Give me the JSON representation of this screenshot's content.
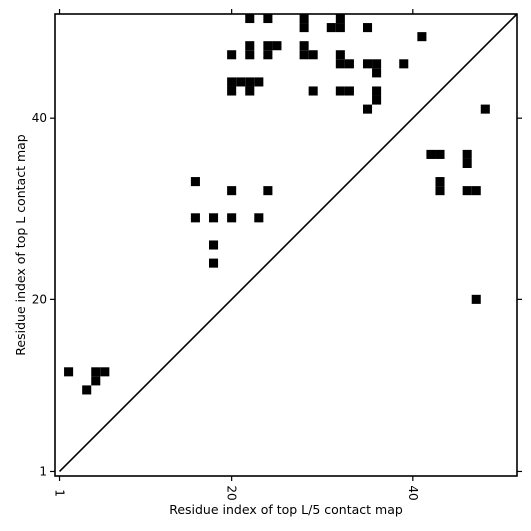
{
  "chart_data": {
    "type": "heatmap",
    "title": "",
    "xlabel": "Residue index of top L/5 contact map",
    "ylabel": "Residue index of top L contact map",
    "xlim": [
      0.5,
      51.5
    ],
    "ylim": [
      0.5,
      51.5
    ],
    "x_ticks": [
      1,
      20,
      40
    ],
    "x_tick_labels": [
      "1",
      "20",
      "40"
    ],
    "y_ticks": [
      1,
      20,
      40
    ],
    "y_tick_labels": [
      "1",
      "20",
      "40"
    ],
    "x_tick_rotation": "vertical",
    "grid": false,
    "diagonal_line": true,
    "cell_color": "#000000",
    "upper_triangle_cells": [
      [
        22,
        51
      ],
      [
        24,
        51
      ],
      [
        28,
        51
      ],
      [
        32,
        51
      ],
      [
        28,
        50
      ],
      [
        31,
        50
      ],
      [
        32,
        50
      ],
      [
        35,
        50
      ],
      [
        41,
        49
      ],
      [
        22,
        48
      ],
      [
        24,
        48
      ],
      [
        25,
        48
      ],
      [
        28,
        48
      ],
      [
        20,
        47
      ],
      [
        22,
        47
      ],
      [
        24,
        47
      ],
      [
        28,
        47
      ],
      [
        29,
        47
      ],
      [
        32,
        47
      ],
      [
        32,
        46
      ],
      [
        33,
        46
      ],
      [
        35,
        46
      ],
      [
        36,
        46
      ],
      [
        39,
        46
      ],
      [
        36,
        45
      ],
      [
        20,
        44
      ],
      [
        21,
        44
      ],
      [
        22,
        44
      ],
      [
        23,
        44
      ],
      [
        20,
        43
      ],
      [
        22,
        43
      ],
      [
        29,
        43
      ],
      [
        32,
        43
      ],
      [
        33,
        43
      ],
      [
        36,
        43
      ],
      [
        36,
        42
      ],
      [
        35,
        41
      ],
      [
        48,
        41
      ],
      [
        16,
        33
      ],
      [
        20,
        32
      ],
      [
        24,
        32
      ],
      [
        16,
        29
      ],
      [
        18,
        29
      ],
      [
        20,
        29
      ],
      [
        23,
        29
      ],
      [
        18,
        26
      ],
      [
        18,
        24
      ]
    ],
    "lower_triangle_cells": [
      [
        42,
        36
      ],
      [
        43,
        36
      ],
      [
        46,
        36
      ],
      [
        46,
        35
      ],
      [
        43,
        33
      ],
      [
        43,
        32
      ],
      [
        46,
        32
      ],
      [
        47,
        32
      ],
      [
        47,
        20
      ],
      [
        2,
        12
      ],
      [
        5,
        12
      ],
      [
        6,
        12
      ],
      [
        5,
        11
      ],
      [
        4,
        10
      ]
    ]
  }
}
